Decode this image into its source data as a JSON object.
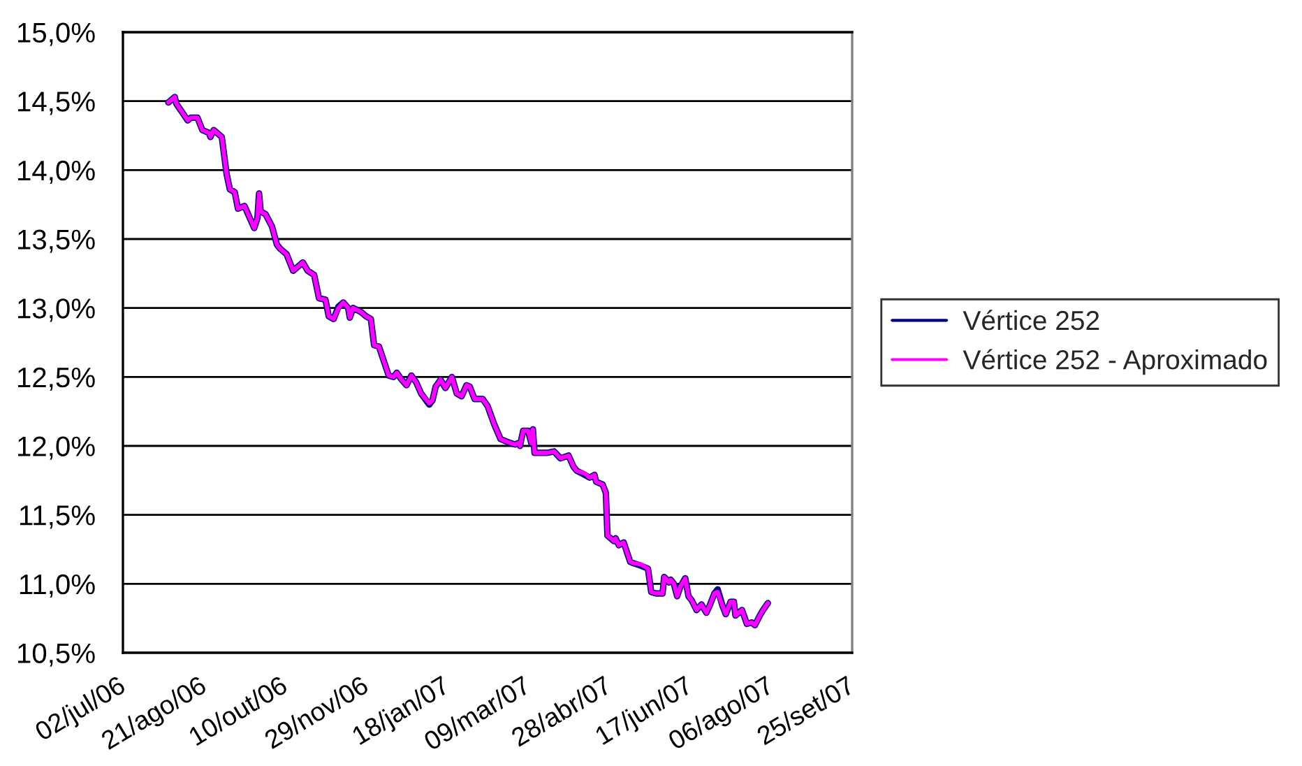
{
  "chart_data": {
    "type": "line",
    "x": [
      "2006-07-30",
      "2006-08-03",
      "2006-08-04",
      "2006-08-11",
      "2006-08-13",
      "2006-08-17",
      "2006-08-20",
      "2006-08-24",
      "2006-08-25",
      "2006-08-27",
      "2006-09-01",
      "2006-09-04",
      "2006-09-06",
      "2006-09-09",
      "2006-09-11",
      "2006-09-15",
      "2006-09-21",
      "2006-09-23",
      "2006-09-24",
      "2006-09-25",
      "2006-09-28",
      "2006-10-02",
      "2006-10-05",
      "2006-10-07",
      "2006-10-11",
      "2006-10-15",
      "2006-10-21",
      "2006-10-24",
      "2006-10-28",
      "2006-10-31",
      "2006-11-04",
      "2006-11-06",
      "2006-11-09",
      "2006-11-12",
      "2006-11-15",
      "2006-11-18",
      "2006-11-19",
      "2006-11-21",
      "2006-11-26",
      "2006-11-29",
      "2006-12-02",
      "2006-12-04",
      "2006-12-07",
      "2006-12-09",
      "2006-12-13",
      "2006-12-16",
      "2006-12-18",
      "2006-12-21",
      "2006-12-24",
      "2006-12-27",
      "2006-12-30",
      "2007-01-02",
      "2007-01-07",
      "2007-01-09",
      "2007-01-11",
      "2007-01-14",
      "2007-01-17",
      "2007-01-21",
      "2007-01-24",
      "2007-01-27",
      "2007-01-30",
      "2007-02-01",
      "2007-02-04",
      "2007-02-09",
      "2007-02-12",
      "2007-02-16",
      "2007-02-20",
      "2007-02-24",
      "2007-03-01",
      "2007-03-03",
      "2007-03-04",
      "2007-03-06",
      "2007-03-09",
      "2007-03-11",
      "2007-03-12",
      "2007-03-13",
      "2007-03-17",
      "2007-03-21",
      "2007-03-25",
      "2007-03-29",
      "2007-04-03",
      "2007-04-06",
      "2007-04-08",
      "2007-04-13",
      "2007-04-16",
      "2007-04-19",
      "2007-04-20",
      "2007-04-24",
      "2007-04-26",
      "2007-04-27",
      "2007-05-01",
      "2007-05-02",
      "2007-05-04",
      "2007-05-07",
      "2007-05-11",
      "2007-05-13",
      "2007-05-18",
      "2007-05-22",
      "2007-05-24",
      "2007-05-27",
      "2007-05-31",
      "2007-06-01",
      "2007-06-04",
      "2007-06-05",
      "2007-06-07",
      "2007-06-09",
      "2007-06-11",
      "2007-06-14",
      "2007-06-16",
      "2007-06-18",
      "2007-06-21",
      "2007-06-24",
      "2007-06-27",
      "2007-06-29",
      "2007-07-02",
      "2007-07-04",
      "2007-07-07",
      "2007-07-09",
      "2007-07-12",
      "2007-07-14",
      "2007-07-15",
      "2007-07-19",
      "2007-07-22",
      "2007-07-25",
      "2007-07-27",
      "2007-07-30",
      "2007-08-01",
      "2007-08-04"
    ],
    "series": [
      {
        "name": "Vértice 252",
        "color": "#000080",
        "values": [
          14.49,
          14.53,
          14.48,
          14.36,
          14.38,
          14.38,
          14.29,
          14.27,
          14.24,
          14.29,
          14.24,
          13.97,
          13.86,
          13.84,
          13.72,
          13.74,
          13.58,
          13.65,
          13.83,
          13.7,
          13.68,
          13.59,
          13.46,
          13.43,
          13.39,
          13.27,
          13.33,
          13.27,
          13.24,
          13.07,
          13.06,
          12.94,
          12.92,
          13.01,
          13.04,
          13.0,
          12.93,
          13.0,
          12.97,
          12.94,
          12.92,
          12.73,
          12.72,
          12.65,
          12.51,
          12.5,
          12.53,
          12.48,
          12.44,
          12.51,
          12.46,
          12.38,
          12.3,
          12.33,
          12.43,
          12.48,
          12.42,
          12.5,
          12.38,
          12.36,
          12.44,
          12.43,
          12.34,
          12.34,
          12.29,
          12.16,
          12.05,
          12.03,
          12.01,
          12.02,
          12.0,
          12.11,
          12.11,
          12.02,
          12.12,
          11.95,
          11.95,
          11.95,
          11.96,
          11.91,
          11.93,
          11.85,
          11.82,
          11.79,
          11.77,
          11.79,
          11.74,
          11.72,
          11.66,
          11.35,
          11.31,
          11.33,
          11.28,
          11.3,
          11.16,
          11.15,
          11.13,
          11.11,
          10.94,
          10.93,
          10.93,
          11.05,
          11.01,
          11.03,
          11.0,
          10.91,
          10.98,
          11.04,
          10.91,
          10.88,
          10.81,
          10.85,
          10.79,
          10.84,
          10.93,
          10.96,
          10.84,
          10.78,
          10.87,
          10.87,
          10.77,
          10.81,
          10.71,
          10.72,
          10.7,
          10.77,
          10.81,
          10.86
        ]
      },
      {
        "name": "Vértice 252 - Aproximado",
        "color": "#ff00ff",
        "values": [
          14.49,
          14.53,
          14.48,
          14.36,
          14.38,
          14.38,
          14.29,
          14.27,
          14.24,
          14.29,
          14.24,
          13.97,
          13.86,
          13.84,
          13.72,
          13.74,
          13.58,
          13.65,
          13.83,
          13.7,
          13.68,
          13.59,
          13.46,
          13.43,
          13.39,
          13.27,
          13.33,
          13.27,
          13.24,
          13.07,
          13.06,
          12.94,
          12.92,
          13.0,
          13.04,
          13.0,
          12.93,
          13.0,
          12.97,
          12.94,
          12.92,
          12.73,
          12.72,
          12.65,
          12.51,
          12.5,
          12.53,
          12.48,
          12.44,
          12.51,
          12.46,
          12.38,
          12.31,
          12.33,
          12.43,
          12.48,
          12.42,
          12.5,
          12.38,
          12.36,
          12.44,
          12.43,
          12.34,
          12.34,
          12.29,
          12.16,
          12.05,
          12.03,
          12.01,
          12.02,
          12.0,
          12.11,
          12.11,
          12.02,
          12.12,
          11.95,
          11.95,
          11.95,
          11.96,
          11.91,
          11.93,
          11.85,
          11.82,
          11.8,
          11.77,
          11.79,
          11.74,
          11.72,
          11.66,
          11.35,
          11.31,
          11.33,
          11.28,
          11.3,
          11.16,
          11.15,
          11.14,
          11.11,
          10.94,
          10.93,
          10.93,
          11.05,
          11.01,
          11.03,
          11.0,
          10.91,
          10.98,
          11.04,
          10.91,
          10.88,
          10.81,
          10.85,
          10.79,
          10.84,
          10.93,
          10.94,
          10.84,
          10.78,
          10.87,
          10.87,
          10.77,
          10.81,
          10.71,
          10.72,
          10.7,
          10.77,
          10.81,
          10.86
        ]
      }
    ],
    "xlim": [
      "2006-07-02",
      "2007-09-25"
    ],
    "xticks": [
      {
        "value": "2006-07-02",
        "label": "02/jul/06"
      },
      {
        "value": "2006-08-21",
        "label": "21/ago/06"
      },
      {
        "value": "2006-10-10",
        "label": "10/out/06"
      },
      {
        "value": "2006-11-29",
        "label": "29/nov/06"
      },
      {
        "value": "2007-01-18",
        "label": "18/jan/07"
      },
      {
        "value": "2007-03-09",
        "label": "09/mar/07"
      },
      {
        "value": "2007-04-28",
        "label": "28/abr/07"
      },
      {
        "value": "2007-06-17",
        "label": "17/jun/07"
      },
      {
        "value": "2007-08-06",
        "label": "06/ago/07"
      },
      {
        "value": "2007-09-25",
        "label": "25/set/07"
      }
    ],
    "ylim": [
      10.5,
      15.0
    ],
    "yticks": [
      {
        "value": 10.5,
        "label": "10,5%"
      },
      {
        "value": 11.0,
        "label": "11,0%"
      },
      {
        "value": 11.5,
        "label": "11,5%"
      },
      {
        "value": 12.0,
        "label": "12,0%"
      },
      {
        "value": 12.5,
        "label": "12,5%"
      },
      {
        "value": 13.0,
        "label": "13,0%"
      },
      {
        "value": 13.5,
        "label": "13,5%"
      },
      {
        "value": 14.0,
        "label": "14,0%"
      },
      {
        "value": 14.5,
        "label": "14,5%"
      },
      {
        "value": 15.0,
        "label": "15,0%"
      }
    ],
    "grid": "y",
    "legend": "right",
    "line_style": "solid",
    "marker": "none"
  }
}
